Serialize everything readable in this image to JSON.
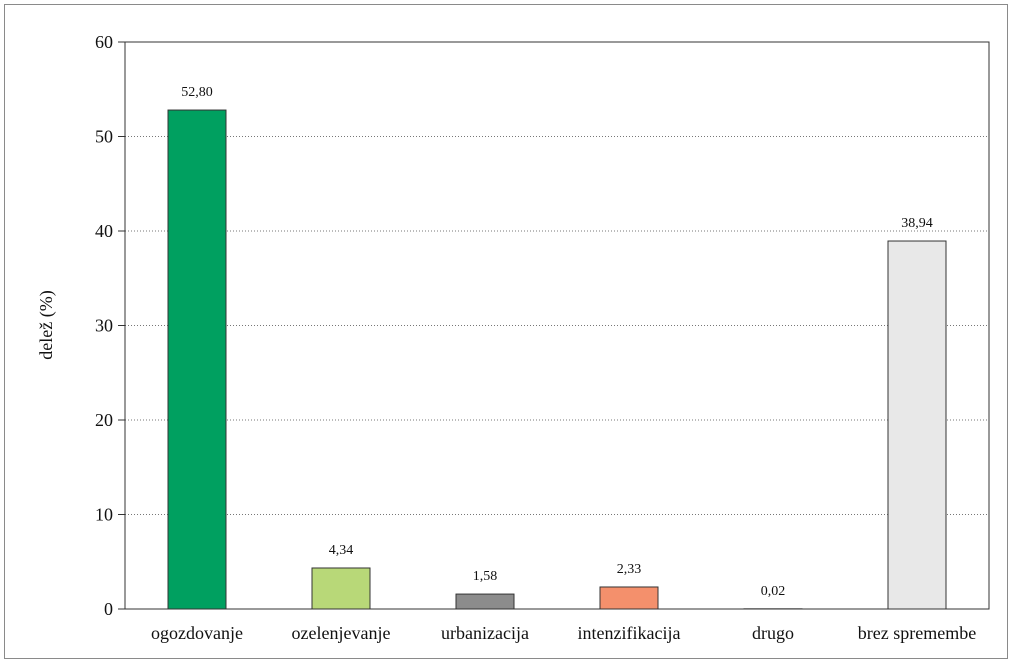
{
  "chart_data": {
    "type": "bar",
    "title": "",
    "xlabel": "",
    "ylabel": "delež (%)",
    "ylim": [
      0,
      60
    ],
    "yticks": [
      0,
      10,
      20,
      30,
      40,
      50,
      60
    ],
    "grid": true,
    "categories": [
      "ogozdovanje",
      "ozelenjevanje",
      "urbanizacija",
      "intenzifikacija",
      "drugo",
      "brez spremembe"
    ],
    "values": [
      52.8,
      4.34,
      1.58,
      2.33,
      0.02,
      38.94
    ],
    "value_labels": [
      "52,80",
      "4,34",
      "1,58",
      "2,33",
      "0,02",
      "38,94"
    ],
    "colors": [
      "#00a060",
      "#b8d878",
      "#8c8c8c",
      "#f4906c",
      "#ffffff",
      "#e8e8e8"
    ]
  }
}
